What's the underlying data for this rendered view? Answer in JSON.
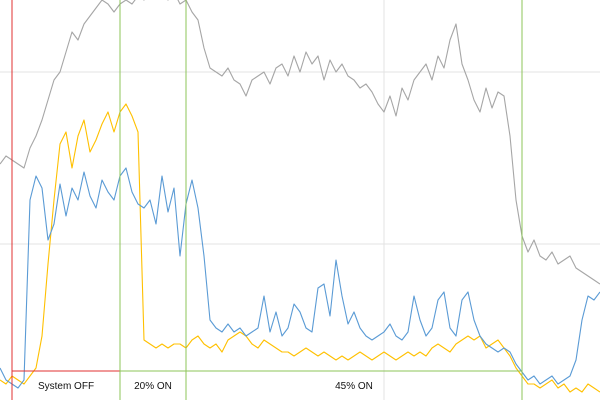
{
  "chart_data": {
    "type": "line",
    "title": "",
    "xlabel": "",
    "ylabel": "",
    "xlim": [
      0,
      100
    ],
    "ylim": [
      0,
      100
    ],
    "grid": true,
    "x_gridlines": [
      64
    ],
    "y_gridlines": [
      39,
      82
    ],
    "series": [
      {
        "color": "#a6a6a6",
        "points": [
          [
            0,
            59
          ],
          [
            1,
            61
          ],
          [
            2,
            60
          ],
          [
            3,
            59
          ],
          [
            4,
            58
          ],
          [
            5,
            63
          ],
          [
            6,
            66
          ],
          [
            7,
            70
          ],
          [
            8,
            75
          ],
          [
            9,
            80
          ],
          [
            10,
            82
          ],
          [
            11,
            87
          ],
          [
            12,
            92
          ],
          [
            13,
            90
          ],
          [
            14,
            94
          ],
          [
            15,
            96
          ],
          [
            16,
            98
          ],
          [
            17,
            100
          ],
          [
            18,
            99
          ],
          [
            19,
            97
          ],
          [
            20,
            99
          ],
          [
            21,
            100
          ],
          [
            22,
            99
          ],
          [
            23,
            101
          ],
          [
            24,
            100
          ],
          [
            25,
            102
          ],
          [
            26,
            101
          ],
          [
            27,
            102
          ],
          [
            28,
            100
          ],
          [
            29,
            102
          ],
          [
            30,
            99
          ],
          [
            31,
            100
          ],
          [
            32,
            97
          ],
          [
            33,
            95
          ],
          [
            34,
            88
          ],
          [
            35,
            83
          ],
          [
            36,
            82
          ],
          [
            37,
            81
          ],
          [
            38,
            83
          ],
          [
            39,
            80
          ],
          [
            40,
            79
          ],
          [
            41,
            76
          ],
          [
            42,
            80
          ],
          [
            43,
            81
          ],
          [
            44,
            82
          ],
          [
            45,
            79
          ],
          [
            46,
            83
          ],
          [
            47,
            84
          ],
          [
            48,
            81
          ],
          [
            49,
            86
          ],
          [
            50,
            82
          ],
          [
            51,
            87
          ],
          [
            52,
            84
          ],
          [
            53,
            86
          ],
          [
            54,
            80
          ],
          [
            55,
            85
          ],
          [
            56,
            82
          ],
          [
            57,
            84
          ],
          [
            58,
            81
          ],
          [
            59,
            80
          ],
          [
            60,
            78
          ],
          [
            61,
            79
          ],
          [
            62,
            77
          ],
          [
            63,
            74
          ],
          [
            64,
            72
          ],
          [
            65,
            76
          ],
          [
            66,
            71
          ],
          [
            67,
            78
          ],
          [
            68,
            75
          ],
          [
            69,
            80
          ],
          [
            70,
            82
          ],
          [
            71,
            84
          ],
          [
            72,
            80
          ],
          [
            73,
            86
          ],
          [
            74,
            83
          ],
          [
            75,
            90
          ],
          [
            76,
            94
          ],
          [
            77,
            84
          ],
          [
            78,
            80
          ],
          [
            79,
            75
          ],
          [
            80,
            72
          ],
          [
            81,
            78
          ],
          [
            82,
            73
          ],
          [
            83,
            77
          ],
          [
            84,
            76
          ],
          [
            85,
            66
          ],
          [
            86,
            50
          ],
          [
            87,
            41
          ],
          [
            88,
            37
          ],
          [
            89,
            40
          ],
          [
            90,
            36
          ],
          [
            91,
            35
          ],
          [
            92,
            37
          ],
          [
            93,
            34
          ],
          [
            94,
            35
          ],
          [
            95,
            36
          ],
          [
            96,
            33
          ],
          [
            97,
            32
          ],
          [
            98,
            31
          ],
          [
            99,
            30
          ],
          [
            100,
            29
          ]
        ]
      },
      {
        "color": "#ffc000",
        "points": [
          [
            0,
            5
          ],
          [
            1,
            4
          ],
          [
            2,
            6
          ],
          [
            3,
            5
          ],
          [
            4,
            4
          ],
          [
            5,
            6
          ],
          [
            6,
            8
          ],
          [
            7,
            16
          ],
          [
            8,
            34
          ],
          [
            9,
            50
          ],
          [
            10,
            64
          ],
          [
            11,
            67
          ],
          [
            12,
            58
          ],
          [
            13,
            66
          ],
          [
            14,
            70
          ],
          [
            15,
            62
          ],
          [
            16,
            65
          ],
          [
            17,
            69
          ],
          [
            18,
            72
          ],
          [
            19,
            67
          ],
          [
            20,
            72
          ],
          [
            21,
            74
          ],
          [
            22,
            71
          ],
          [
            23,
            67
          ],
          [
            24,
            15
          ],
          [
            25,
            14
          ],
          [
            26,
            13
          ],
          [
            27,
            14
          ],
          [
            28,
            13
          ],
          [
            29,
            14
          ],
          [
            30,
            14
          ],
          [
            31,
            13
          ],
          [
            32,
            15
          ],
          [
            33,
            16
          ],
          [
            34,
            14
          ],
          [
            35,
            13
          ],
          [
            36,
            14
          ],
          [
            37,
            12
          ],
          [
            38,
            15
          ],
          [
            39,
            16
          ],
          [
            40,
            17
          ],
          [
            41,
            16
          ],
          [
            42,
            14
          ],
          [
            43,
            13
          ],
          [
            44,
            15
          ],
          [
            45,
            14
          ],
          [
            46,
            13
          ],
          [
            47,
            12
          ],
          [
            48,
            12
          ],
          [
            49,
            11
          ],
          [
            50,
            12
          ],
          [
            51,
            13
          ],
          [
            52,
            12
          ],
          [
            53,
            11
          ],
          [
            54,
            12
          ],
          [
            55,
            11
          ],
          [
            56,
            10
          ],
          [
            57,
            11
          ],
          [
            58,
            10
          ],
          [
            59,
            11
          ],
          [
            60,
            12
          ],
          [
            61,
            11
          ],
          [
            62,
            10
          ],
          [
            63,
            11
          ],
          [
            64,
            12
          ],
          [
            65,
            11
          ],
          [
            66,
            10
          ],
          [
            67,
            11
          ],
          [
            68,
            12
          ],
          [
            69,
            11
          ],
          [
            70,
            12
          ],
          [
            71,
            11
          ],
          [
            72,
            13
          ],
          [
            73,
            14
          ],
          [
            74,
            13
          ],
          [
            75,
            12
          ],
          [
            76,
            14
          ],
          [
            77,
            15
          ],
          [
            78,
            16
          ],
          [
            79,
            15
          ],
          [
            80,
            16
          ],
          [
            81,
            13
          ],
          [
            82,
            14
          ],
          [
            83,
            15
          ],
          [
            84,
            13
          ],
          [
            85,
            11
          ],
          [
            86,
            8
          ],
          [
            87,
            6
          ],
          [
            88,
            4
          ],
          [
            89,
            4
          ],
          [
            90,
            3
          ],
          [
            91,
            4
          ],
          [
            92,
            5
          ],
          [
            93,
            3
          ],
          [
            94,
            4
          ],
          [
            95,
            2
          ],
          [
            96,
            3
          ],
          [
            97,
            2
          ],
          [
            98,
            4
          ],
          [
            99,
            3
          ],
          [
            100,
            2
          ]
        ]
      },
      {
        "color": "#5b9bd5",
        "points": [
          [
            0,
            8
          ],
          [
            1,
            5
          ],
          [
            2,
            4
          ],
          [
            3,
            3
          ],
          [
            4,
            5
          ],
          [
            5,
            50
          ],
          [
            6,
            56
          ],
          [
            7,
            53
          ],
          [
            8,
            40
          ],
          [
            9,
            44
          ],
          [
            10,
            54
          ],
          [
            11,
            46
          ],
          [
            12,
            53
          ],
          [
            13,
            50
          ],
          [
            14,
            57
          ],
          [
            15,
            51
          ],
          [
            16,
            48
          ],
          [
            17,
            55
          ],
          [
            18,
            52
          ],
          [
            19,
            50
          ],
          [
            20,
            56
          ],
          [
            21,
            58
          ],
          [
            22,
            52
          ],
          [
            23,
            49
          ],
          [
            24,
            48
          ],
          [
            25,
            50
          ],
          [
            26,
            44
          ],
          [
            27,
            56
          ],
          [
            28,
            47
          ],
          [
            29,
            53
          ],
          [
            30,
            36
          ],
          [
            31,
            49
          ],
          [
            32,
            55
          ],
          [
            33,
            48
          ],
          [
            34,
            36
          ],
          [
            35,
            20
          ],
          [
            36,
            18
          ],
          [
            37,
            17
          ],
          [
            38,
            19
          ],
          [
            39,
            17
          ],
          [
            40,
            18
          ],
          [
            41,
            16
          ],
          [
            42,
            17
          ],
          [
            43,
            18
          ],
          [
            44,
            26
          ],
          [
            45,
            17
          ],
          [
            46,
            22
          ],
          [
            47,
            16
          ],
          [
            48,
            18
          ],
          [
            49,
            24
          ],
          [
            50,
            22
          ],
          [
            51,
            18
          ],
          [
            52,
            17
          ],
          [
            53,
            28
          ],
          [
            54,
            29
          ],
          [
            55,
            21
          ],
          [
            56,
            35
          ],
          [
            57,
            26
          ],
          [
            58,
            19
          ],
          [
            59,
            22
          ],
          [
            60,
            18
          ],
          [
            61,
            16
          ],
          [
            62,
            15
          ],
          [
            63,
            16
          ],
          [
            64,
            17
          ],
          [
            65,
            19
          ],
          [
            66,
            16
          ],
          [
            67,
            15
          ],
          [
            68,
            17
          ],
          [
            69,
            26
          ],
          [
            70,
            20
          ],
          [
            71,
            16
          ],
          [
            72,
            18
          ],
          [
            73,
            25
          ],
          [
            74,
            27
          ],
          [
            75,
            18
          ],
          [
            76,
            16
          ],
          [
            77,
            25
          ],
          [
            78,
            27
          ],
          [
            79,
            20
          ],
          [
            80,
            16
          ],
          [
            81,
            14
          ],
          [
            82,
            13
          ],
          [
            83,
            12
          ],
          [
            84,
            13
          ],
          [
            85,
            12
          ],
          [
            86,
            9
          ],
          [
            87,
            7
          ],
          [
            88,
            5
          ],
          [
            89,
            6
          ],
          [
            90,
            4
          ],
          [
            91,
            5
          ],
          [
            92,
            6
          ],
          [
            93,
            4
          ],
          [
            94,
            5
          ],
          [
            95,
            6
          ],
          [
            96,
            10
          ],
          [
            97,
            20
          ],
          [
            98,
            26
          ],
          [
            99,
            25
          ],
          [
            100,
            27
          ]
        ]
      }
    ],
    "phase_boxes": [
      {
        "label": "System OFF",
        "x_range": [
          2,
          20
        ],
        "color": "#e03030"
      },
      {
        "label": "20% ON",
        "x_range": [
          20,
          31
        ],
        "color": "#8dc45a"
      },
      {
        "label": "45% ON",
        "x_range": [
          31,
          87
        ],
        "color": "#8dc45a"
      }
    ]
  }
}
